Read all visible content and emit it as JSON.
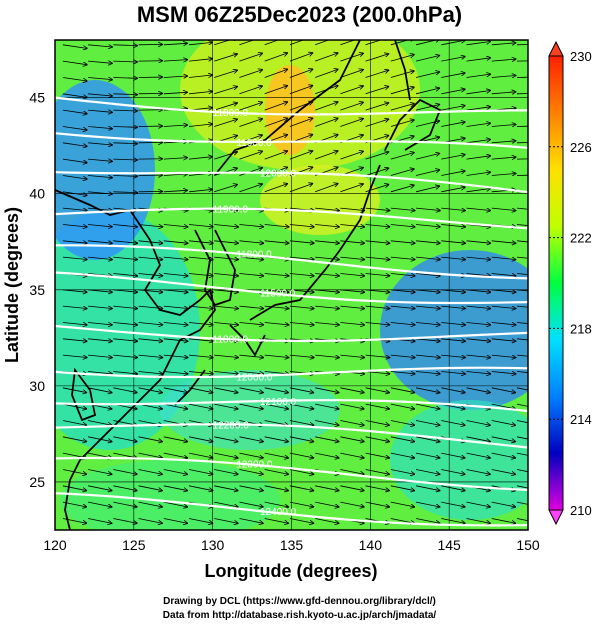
{
  "title": "MSM 06Z25Dec2023 (200.0hPa)",
  "map": {
    "xlabel": "Longitude (degrees)",
    "ylabel": "Latitude  (degrees)",
    "lon_range": [
      120,
      150
    ],
    "lat_range": [
      22.5,
      48
    ],
    "lon_ticks": [
      "120",
      "125",
      "130",
      "135",
      "140",
      "145",
      "150"
    ],
    "lat_ticks": [
      "25",
      "30",
      "35",
      "40",
      "45"
    ],
    "grid": true,
    "contours": [
      {
        "label": "11800.0",
        "lat_at_120": 45.0,
        "lat_at_150": 44.0
      },
      {
        "label": "11900.0",
        "lat_at_120": 43.5,
        "lat_at_150": 42.0
      },
      {
        "label": "12000.0",
        "lat_at_120": 41.5,
        "lat_at_150": 40.0
      },
      {
        "label": "11900.0",
        "lat_at_120": 39.0,
        "lat_at_150": 38.5
      },
      {
        "label": "11800.0",
        "lat_at_120": 37.0,
        "lat_at_150": 36.0
      },
      {
        "label": "11500.0",
        "lat_at_120": 35.5,
        "lat_at_150": 34.5
      },
      {
        "label": "11800.0",
        "lat_at_120": 33.0,
        "lat_at_150": 32.5
      },
      {
        "label": "12000.0",
        "lat_at_120": 31.0,
        "lat_at_150": 30.5
      },
      {
        "label": "12100.0",
        "lat_at_120": 29.5,
        "lat_at_150": 28.5
      },
      {
        "label": "12200.0",
        "lat_at_120": 28.0,
        "lat_at_150": 27.0
      },
      {
        "label": "12300.0",
        "lat_at_120": 26.0,
        "lat_at_150": 25.0
      },
      {
        "label": "12400.0",
        "lat_at_120": 24.0,
        "lat_at_150": 23.0
      }
    ]
  },
  "colorbar": {
    "min": 210,
    "max": 230,
    "tick_labels": [
      "210",
      "214",
      "218",
      "222",
      "226",
      "230"
    ],
    "colors": [
      "#e000e0",
      "#0000c0",
      "#0080ff",
      "#00e0ff",
      "#00ff40",
      "#c0ff00",
      "#ffe000",
      "#ff8000",
      "#ff2000"
    ]
  },
  "credits": {
    "line1": "Drawing by DCL (https://www.gfd-dennou.org/library/dcl/)",
    "line2": "Data from http://database.rish.kyoto-u.ac.jp/arch/jmadata/"
  }
}
